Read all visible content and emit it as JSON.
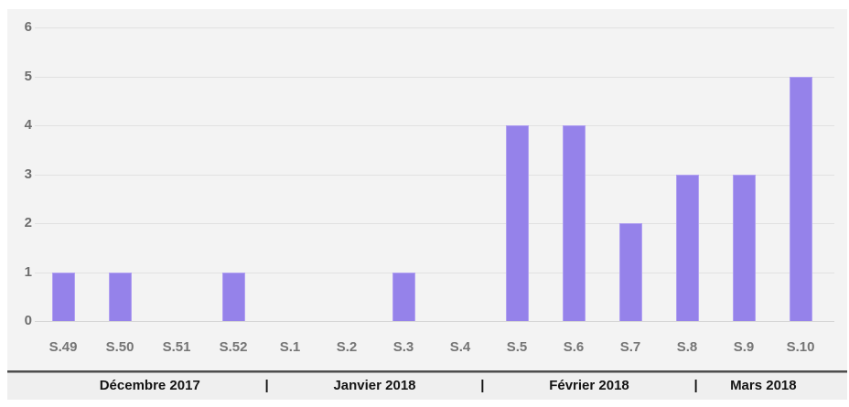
{
  "chart_data": {
    "type": "bar",
    "categories": [
      "S.49",
      "S.50",
      "S.51",
      "S.52",
      "S.1",
      "S.2",
      "S.3",
      "S.4",
      "S.5",
      "S.6",
      "S.7",
      "S.8",
      "S.9",
      "S.10"
    ],
    "values": [
      1,
      1,
      0,
      1,
      0,
      0,
      1,
      0,
      4,
      4,
      2,
      3,
      3,
      5
    ],
    "title": "",
    "xlabel": "",
    "ylabel": "",
    "ylim": [
      0,
      6
    ],
    "yticks": [
      0,
      1,
      2,
      3,
      4,
      5,
      6
    ],
    "grid": true,
    "legend": false,
    "month_groups": [
      {
        "label": "Décembre 2017",
        "weeks": [
          "S.49",
          "S.50",
          "S.51",
          "S.52"
        ]
      },
      {
        "label": "Janvier 2018",
        "weeks": [
          "S.1",
          "S.2",
          "S.3",
          "S.4"
        ]
      },
      {
        "label": "Février 2018",
        "weeks": [
          "S.5",
          "S.6",
          "S.7",
          "S.8"
        ]
      },
      {
        "label": "Mars 2018",
        "weeks": [
          "S.9",
          "S.10"
        ]
      }
    ],
    "group_separator": "|"
  },
  "colors": {
    "page_bg": "#ffffff",
    "panel_bg": "#f3f3f3",
    "band_bg": "#efefef",
    "gridline": "#e1e1e1",
    "baseline": "#d5d5d5",
    "bar_fill": "#9582ea",
    "bar_border": "#b1a1f1",
    "y_label": "#6e6e6e",
    "x_label": "#757575",
    "month_label": "#141414",
    "separator_line_dark": "#4e4e4e",
    "separator_line_light": "#9a9a9a"
  }
}
